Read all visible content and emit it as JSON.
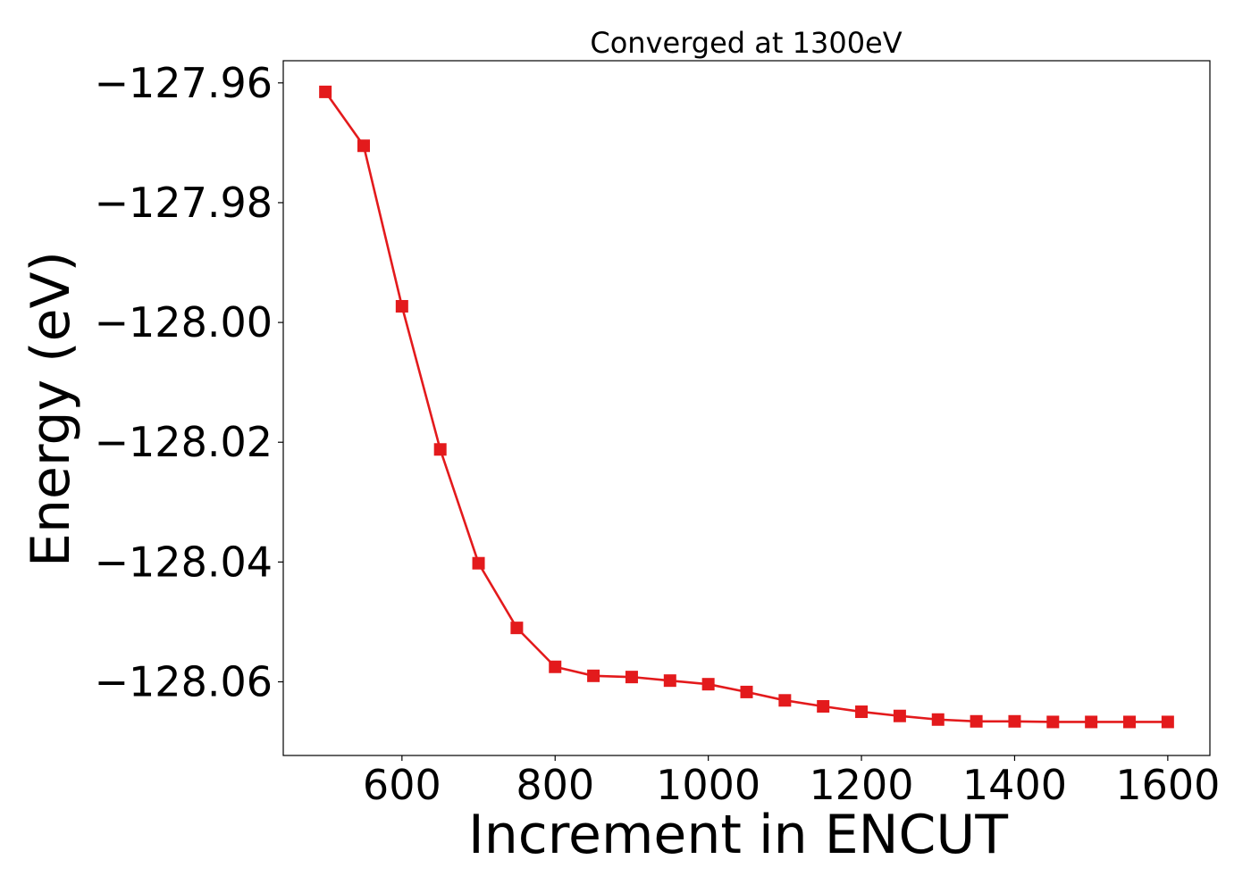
{
  "chart_data": {
    "type": "line",
    "title": "Converged at 1300eV",
    "xlabel": "Increment in ENCUT",
    "ylabel": "Energy (eV)",
    "xlim": [
      445,
      1655
    ],
    "ylim": [
      -128.0723,
      -127.9563
    ],
    "x_ticks": [
      600,
      800,
      1000,
      1200,
      1400,
      1600
    ],
    "y_ticks": [
      -127.96,
      -127.98,
      -128.0,
      -128.02,
      -128.04,
      -128.06
    ],
    "x_tick_labels": [
      "600",
      "800",
      "1000",
      "1200",
      "1400",
      "1600"
    ],
    "y_tick_labels": [
      "−127.96",
      "−127.98",
      "−128.00",
      "−128.02",
      "−128.04",
      "−128.06"
    ],
    "grid": false,
    "color": "#e31a1c",
    "marker": "square",
    "series": [
      {
        "x": [
          500,
          550,
          600,
          650,
          700,
          750,
          800,
          850,
          900,
          950,
          1000,
          1050,
          1100,
          1150,
          1200,
          1250,
          1300,
          1350,
          1400,
          1450,
          1500,
          1550,
          1600
        ],
        "y": [
          -127.9615,
          -127.9705,
          -127.9973,
          -128.0212,
          -128.0402,
          -128.051,
          -128.0575,
          -128.059,
          -128.0592,
          -128.0598,
          -128.0604,
          -128.0617,
          -128.0631,
          -128.0641,
          -128.065,
          -128.0657,
          -128.0663,
          -128.0666,
          -128.0666,
          -128.0667,
          -128.0667,
          -128.0667,
          -128.0667
        ]
      }
    ]
  }
}
